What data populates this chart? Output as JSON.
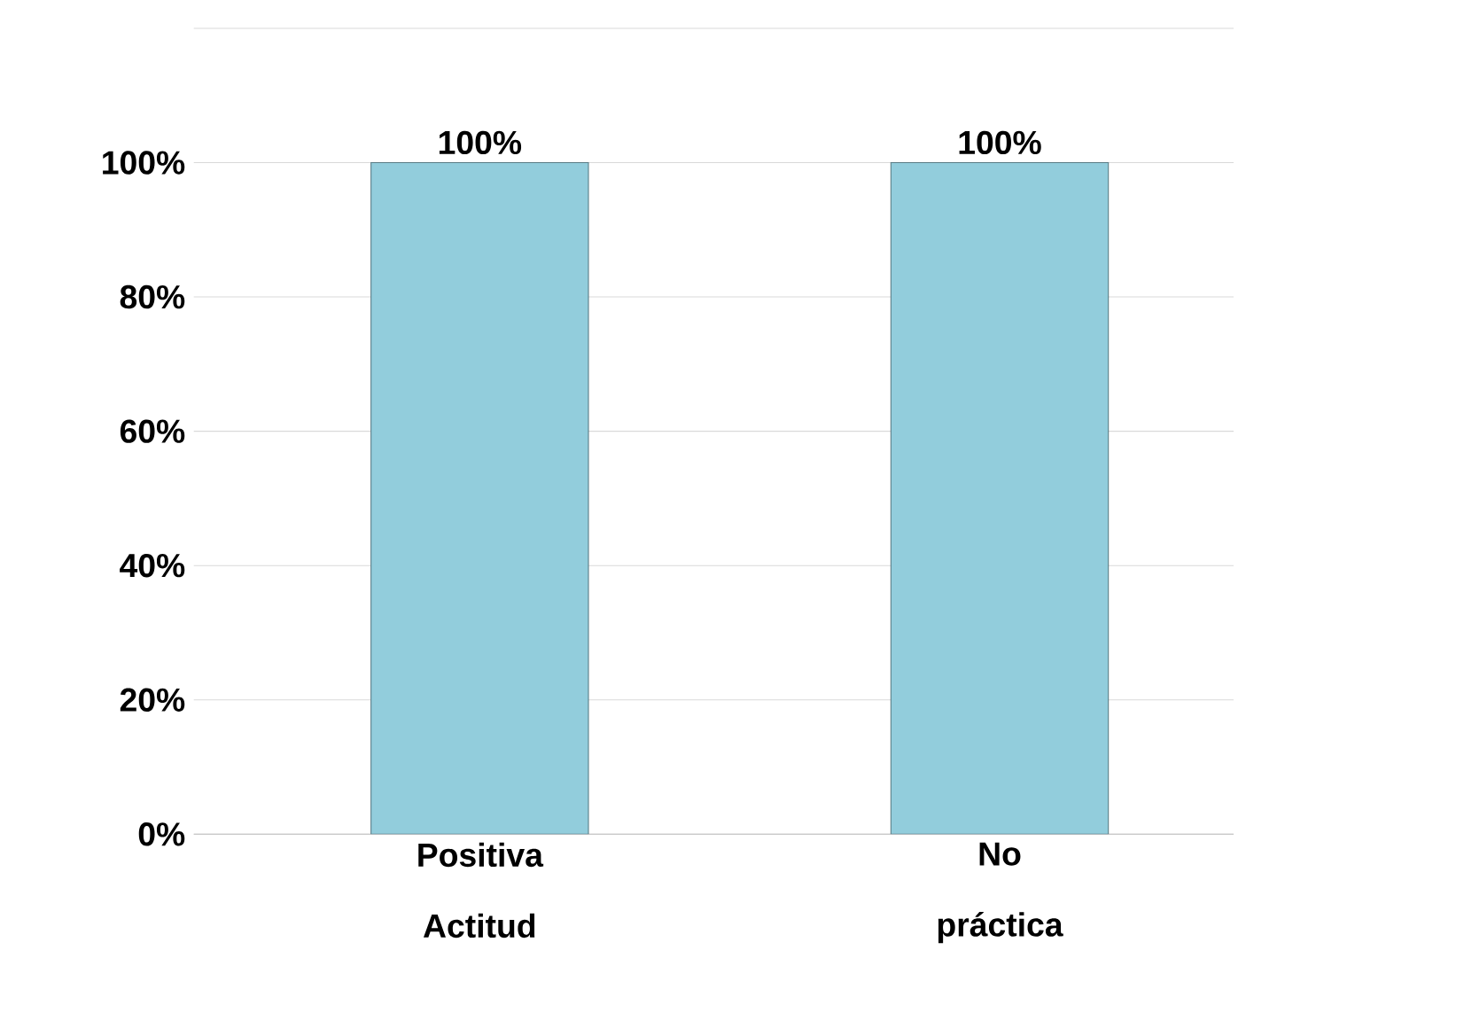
{
  "chart_data": {
    "type": "bar",
    "categories": [
      "Positiva Actitud",
      "No práctica"
    ],
    "values": [
      100,
      100
    ],
    "value_labels": [
      "100%",
      "100%"
    ],
    "color": "#92cddc",
    "ylim": [
      0,
      120
    ],
    "yticks": [
      {
        "value": 0,
        "label": "0%"
      },
      {
        "value": 20,
        "label": "20%"
      },
      {
        "value": 40,
        "label": "40%"
      },
      {
        "value": 60,
        "label": "60%"
      },
      {
        "value": 80,
        "label": "80%"
      },
      {
        "value": 100,
        "label": "100%"
      },
      {
        "value": 120,
        "label": null
      }
    ],
    "grid": "y"
  }
}
